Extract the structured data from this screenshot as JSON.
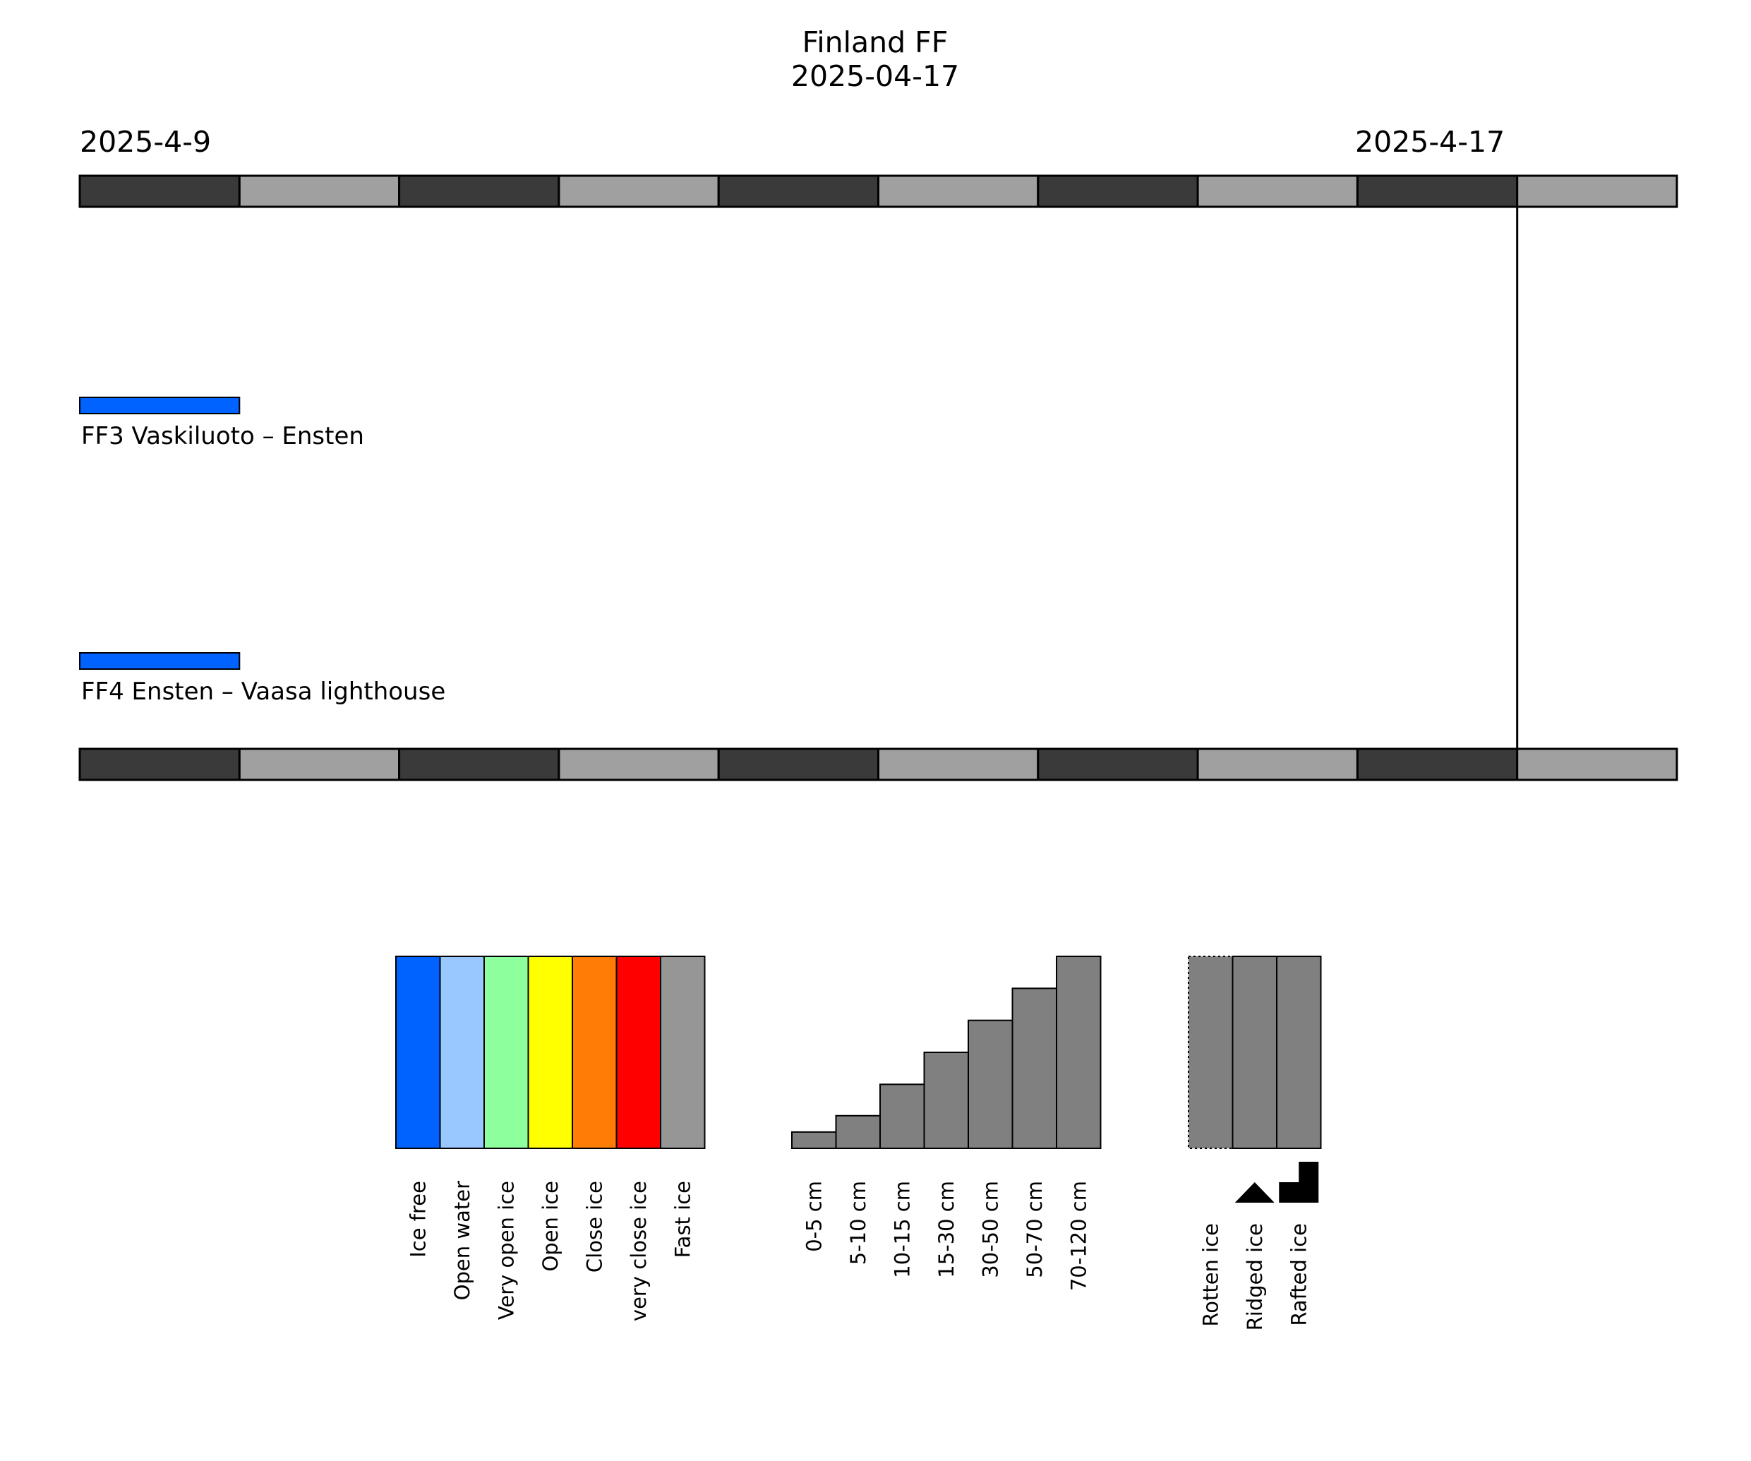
{
  "chart_data": {
    "type": "table",
    "title": "Finland FF",
    "subtitle": "2025-04-17",
    "start_date_label": "2025-4-9",
    "end_date_label": "2025-4-17",
    "days": [
      "2025-04-08",
      "2025-04-09",
      "2025-04-10",
      "2025-04-11",
      "2025-04-12",
      "2025-04-13",
      "2025-04-14",
      "2025-04-15",
      "2025-04-16",
      "2025-04-17"
    ],
    "current_date": "2025-04-17",
    "routes": [
      {
        "label": "FF3 Vaskiluoto – Ensten",
        "segments": [
          {
            "start": "2025-04-08",
            "end": "2025-04-09",
            "concentration": "Ice free",
            "color": "#0062ff"
          }
        ]
      },
      {
        "label": "FF4 Ensten – Vaasa lighthouse",
        "segments": [
          {
            "start": "2025-04-08",
            "end": "2025-04-09",
            "concentration": "Ice free",
            "color": "#0062ff"
          }
        ]
      }
    ],
    "legend_concentration": [
      {
        "label": "Ice free",
        "color": "#0062ff"
      },
      {
        "label": "Open water",
        "color": "#99c7ff"
      },
      {
        "label": "Very open ice",
        "color": "#8eff9d"
      },
      {
        "label": "Open ice",
        "color": "#ffff00"
      },
      {
        "label": "Close ice",
        "color": "#ff7d07"
      },
      {
        "label": "very close ice",
        "color": "#ff0000"
      },
      {
        "label": "Fast ice",
        "color": "#969696"
      }
    ],
    "legend_thickness": [
      "0-5 cm",
      "5-10 cm",
      "10-15 cm",
      "15-30 cm",
      "30-50 cm",
      "50-70 cm",
      "70-120 cm"
    ],
    "legend_type": [
      {
        "label": "Rotten ice",
        "symbol": "dotted-outline"
      },
      {
        "label": "Ridged ice",
        "symbol": "triangle"
      },
      {
        "label": "Rafted ice",
        "symbol": "step"
      }
    ],
    "colors": {
      "day_dark": "#3a3a3a",
      "day_light": "#a0a0a0",
      "thickness_fill": "#808080"
    }
  }
}
